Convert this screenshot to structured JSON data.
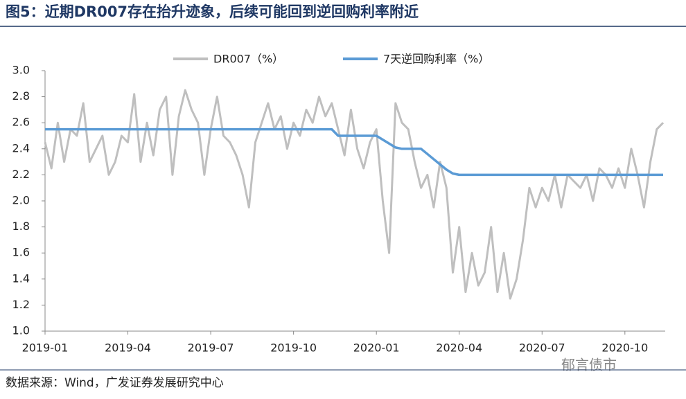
{
  "title": "图5：近期DR007存在抬升迹象，后续可能回到逆回购利率附近",
  "source": "数据来源：Wind，广发证券发展研究中心",
  "watermark": "郁言债市",
  "chart_data": {
    "type": "line",
    "categories": [
      "2019-01",
      null,
      null,
      null,
      null,
      null,
      null,
      null,
      null,
      null,
      null,
      null,
      null,
      "2019-04",
      null,
      null,
      null,
      null,
      null,
      null,
      null,
      null,
      null,
      null,
      null,
      null,
      "2019-07",
      null,
      null,
      null,
      null,
      null,
      null,
      null,
      null,
      null,
      null,
      null,
      null,
      "2019-10",
      null,
      null,
      null,
      null,
      null,
      null,
      null,
      null,
      null,
      null,
      null,
      null,
      "2020-01",
      null,
      null,
      null,
      null,
      null,
      null,
      null,
      null,
      null,
      null,
      null,
      null,
      "2020-04",
      null,
      null,
      null,
      null,
      null,
      null,
      null,
      null,
      null,
      null,
      null,
      null,
      "2020-07",
      null,
      null,
      null,
      null,
      null,
      null,
      null,
      null,
      null,
      null,
      null,
      null,
      "2020-10",
      null,
      null,
      null,
      null,
      null,
      null
    ],
    "series": [
      {
        "name": "DR007（%）",
        "color": "#bfbfbf",
        "values": [
          2.45,
          2.25,
          2.6,
          2.3,
          2.55,
          2.5,
          2.75,
          2.3,
          2.4,
          2.5,
          2.2,
          2.3,
          2.5,
          2.45,
          2.82,
          2.3,
          2.6,
          2.35,
          2.7,
          2.8,
          2.2,
          2.65,
          2.85,
          2.7,
          2.6,
          2.2,
          2.55,
          2.8,
          2.5,
          2.45,
          2.35,
          2.2,
          1.95,
          2.45,
          2.6,
          2.75,
          2.55,
          2.65,
          2.4,
          2.6,
          2.5,
          2.7,
          2.6,
          2.8,
          2.65,
          2.75,
          2.55,
          2.35,
          2.7,
          2.4,
          2.25,
          2.45,
          2.55,
          2.0,
          1.6,
          2.75,
          2.6,
          2.55,
          2.3,
          2.1,
          2.2,
          1.95,
          2.3,
          2.1,
          1.45,
          1.8,
          1.3,
          1.6,
          1.35,
          1.45,
          1.8,
          1.3,
          1.6,
          1.25,
          1.4,
          1.7,
          2.1,
          1.95,
          2.1,
          2.0,
          2.2,
          1.95,
          2.2,
          2.15,
          2.1,
          2.2,
          2.0,
          2.25,
          2.2,
          2.1,
          2.25,
          2.1,
          2.4,
          2.2,
          1.95,
          2.3,
          2.55,
          2.6
        ]
      },
      {
        "name": "7天逆回购利率（%）",
        "color": "#5b9bd5",
        "values": [
          2.55,
          2.55,
          2.55,
          2.55,
          2.55,
          2.55,
          2.55,
          2.55,
          2.55,
          2.55,
          2.55,
          2.55,
          2.55,
          2.55,
          2.55,
          2.55,
          2.55,
          2.55,
          2.55,
          2.55,
          2.55,
          2.55,
          2.55,
          2.55,
          2.55,
          2.55,
          2.55,
          2.55,
          2.55,
          2.55,
          2.55,
          2.55,
          2.55,
          2.55,
          2.55,
          2.55,
          2.55,
          2.55,
          2.55,
          2.55,
          2.55,
          2.55,
          2.55,
          2.55,
          2.55,
          2.55,
          2.5,
          2.5,
          2.5,
          2.5,
          2.5,
          2.5,
          2.5,
          2.47,
          2.44,
          2.41,
          2.4,
          2.4,
          2.4,
          2.4,
          2.36,
          2.32,
          2.28,
          2.24,
          2.21,
          2.2,
          2.2,
          2.2,
          2.2,
          2.2,
          2.2,
          2.2,
          2.2,
          2.2,
          2.2,
          2.2,
          2.2,
          2.2,
          2.2,
          2.2,
          2.2,
          2.2,
          2.2,
          2.2,
          2.2,
          2.2,
          2.2,
          2.2,
          2.2,
          2.2,
          2.2,
          2.2,
          2.2,
          2.2,
          2.2,
          2.2,
          2.2,
          2.2
        ]
      }
    ],
    "ylim": [
      1.0,
      3.0
    ],
    "yticks": [
      {
        "value": 1.0,
        "label": "1.0"
      },
      1.2,
      1.4,
      1.6,
      1.8,
      {
        "value": 2.0,
        "label": "2.0"
      },
      2.2,
      2.4,
      2.6,
      2.8,
      {
        "value": 3.0,
        "label": "3.0"
      }
    ],
    "legend": "top"
  }
}
